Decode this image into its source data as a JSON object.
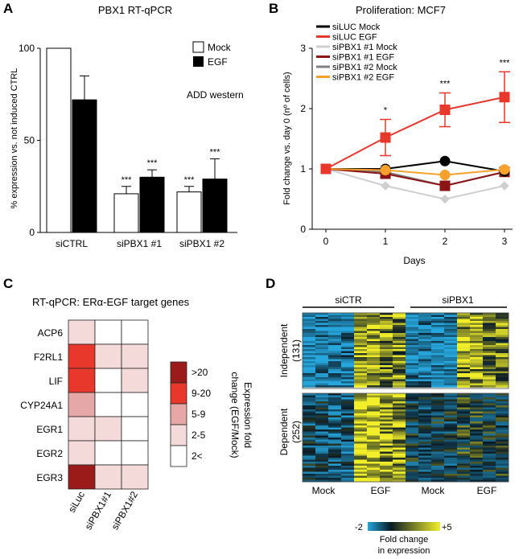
{
  "panels": {
    "a": "A",
    "b": "B",
    "c": "C",
    "d": "D"
  },
  "colors": {
    "red": "#e8372b",
    "black": "#000000",
    "light_gray": "#cfcfcf",
    "dark_red": "#8b1515",
    "gray": "#808080",
    "orange": "#f7a12c",
    "heat_dark": "#9b1b1b",
    "heat_red": "#e8372b",
    "heat_mid": "#e6a8a6",
    "heat_light": "#f5dada",
    "heat_white": "#ffffff",
    "yellow": "#f2ef2a",
    "cyan": "#26a6dc"
  },
  "chart_data": [
    {
      "id": "A",
      "type": "bar",
      "title": "PBX1 RT-qPCR",
      "ylabel": "% expression vs. not induced CTRL",
      "ylim": [
        0,
        100
      ],
      "yticks": [
        "0",
        "50",
        "100"
      ],
      "categories": [
        "siCTRL",
        "siPBX1 #1",
        "siPBX1 #2"
      ],
      "series": [
        {
          "name": "Mock",
          "values": [
            100,
            21,
            22
          ],
          "errors": [
            0,
            4,
            3
          ],
          "stars": [
            "",
            "***",
            "***"
          ]
        },
        {
          "name": "EGF",
          "values": [
            72,
            30,
            29
          ],
          "errors": [
            13,
            4,
            11
          ],
          "stars": [
            "",
            "***",
            "***"
          ]
        }
      ],
      "annotation": "ADD western",
      "legend": "top-right"
    },
    {
      "id": "B",
      "type": "line",
      "title": "Proliferation: MCF7",
      "xlabel": "Days",
      "ylabel": "Fold change vs. day 0 (nº of cells)",
      "x": [
        0,
        1,
        2,
        3
      ],
      "xticks": [
        "0",
        "1",
        "2",
        "3"
      ],
      "ylim": [
        0,
        3
      ],
      "yticks": [
        "0",
        "1",
        "2",
        "3"
      ],
      "series": [
        {
          "name": "siLUC Mock",
          "values": [
            1,
            1.0,
            1.13,
            0.96
          ],
          "color": "black",
          "marker": "circle"
        },
        {
          "name": "siLUC EGF",
          "values": [
            1,
            1.52,
            1.98,
            2.19
          ],
          "errors": [
            0,
            0.3,
            0.28,
            0.42
          ],
          "color": "red",
          "marker": "square"
        },
        {
          "name": "siPBX1 #1 Mock",
          "values": [
            1,
            0.72,
            0.5,
            0.72
          ],
          "color": "light_gray",
          "marker": "diamond"
        },
        {
          "name": "siPBX1 #1 EGF",
          "values": [
            1,
            0.92,
            0.72,
            0.95
          ],
          "color": "dark_red",
          "marker": "square"
        },
        {
          "name": "siPBX1 #2 Mock",
          "values": [
            1,
            0.95,
            0.72,
            0.95
          ],
          "color": "gray",
          "marker": "triangle"
        },
        {
          "name": "siPBX1 #2 EGF",
          "values": [
            1,
            0.98,
            0.9,
            0.99
          ],
          "color": "orange",
          "marker": "circle"
        }
      ],
      "significance": [
        {
          "x": 1,
          "label": "*"
        },
        {
          "x": 2,
          "label": "***"
        },
        {
          "x": 3,
          "label": "***"
        }
      ],
      "legend": "top-left"
    },
    {
      "id": "C",
      "type": "heatmap",
      "title": "RT-qPCR: ERα-EGF target genes",
      "rows": [
        "ACP6",
        "F2RL1",
        "LIF",
        "CYP24A1",
        "EGR1",
        "EGR2",
        "EGR3"
      ],
      "columns": [
        "siLuc",
        "siPBX1#1",
        "siPBX1#2"
      ],
      "values": [
        [
          "2-5",
          "2<",
          "2<"
        ],
        [
          "9-20",
          "2-5",
          "2-5"
        ],
        [
          "9-20",
          "2<",
          "2-5"
        ],
        [
          "5-9",
          "2<",
          "2<"
        ],
        [
          "2-5",
          "2-5",
          "2<"
        ],
        [
          "2-5",
          "2<",
          "2<"
        ],
        [
          ">20",
          "2-5",
          "2-5"
        ]
      ],
      "legend_title": "Expression fold change (EGF/Mock)",
      "legend_bins": [
        ">20",
        "9-20",
        "5-9",
        "2-5",
        "2<"
      ]
    },
    {
      "id": "D",
      "type": "heatmap",
      "group_labels": [
        "siCTR",
        "siPBX1"
      ],
      "column_labels": [
        "Mock",
        "EGF",
        "Mock",
        "EGF"
      ],
      "row_blocks": [
        {
          "label": "Independent",
          "count": "(131)"
        },
        {
          "label": "Dependent",
          "count": "(252)"
        }
      ],
      "colorbar": {
        "min": "-2",
        "max": "+5",
        "title_line1": "Fold change",
        "title_line2": "in expression"
      }
    }
  ]
}
